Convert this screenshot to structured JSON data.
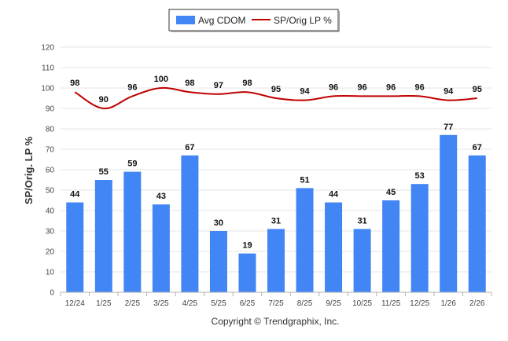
{
  "chart_data": {
    "type": "bar+line",
    "ylabel": "SP/Orig. LP %",
    "ylim": [
      0,
      120
    ],
    "yticks": [
      0,
      10,
      20,
      30,
      40,
      50,
      60,
      70,
      80,
      90,
      100,
      110,
      120
    ],
    "grid": true,
    "legend_position": "top-center",
    "categories": [
      "12/24",
      "1/25",
      "2/25",
      "3/25",
      "4/25",
      "5/25",
      "6/25",
      "7/25",
      "8/25",
      "9/25",
      "10/25",
      "11/25",
      "12/25",
      "1/26",
      "2/26"
    ],
    "series": [
      {
        "name": "Avg CDOM",
        "type": "bar",
        "color": "#4285f4",
        "values": [
          44,
          55,
          59,
          43,
          67,
          30,
          19,
          31,
          51,
          44,
          31,
          45,
          53,
          77,
          67
        ]
      },
      {
        "name": "SP/Orig LP %",
        "type": "line",
        "color": "#c00000",
        "values": [
          98,
          90,
          96,
          100,
          98,
          97,
          98,
          95,
          94,
          96,
          96,
          96,
          96,
          94,
          95
        ]
      }
    ]
  },
  "footer": "Copyright © Trendgraphix, Inc."
}
